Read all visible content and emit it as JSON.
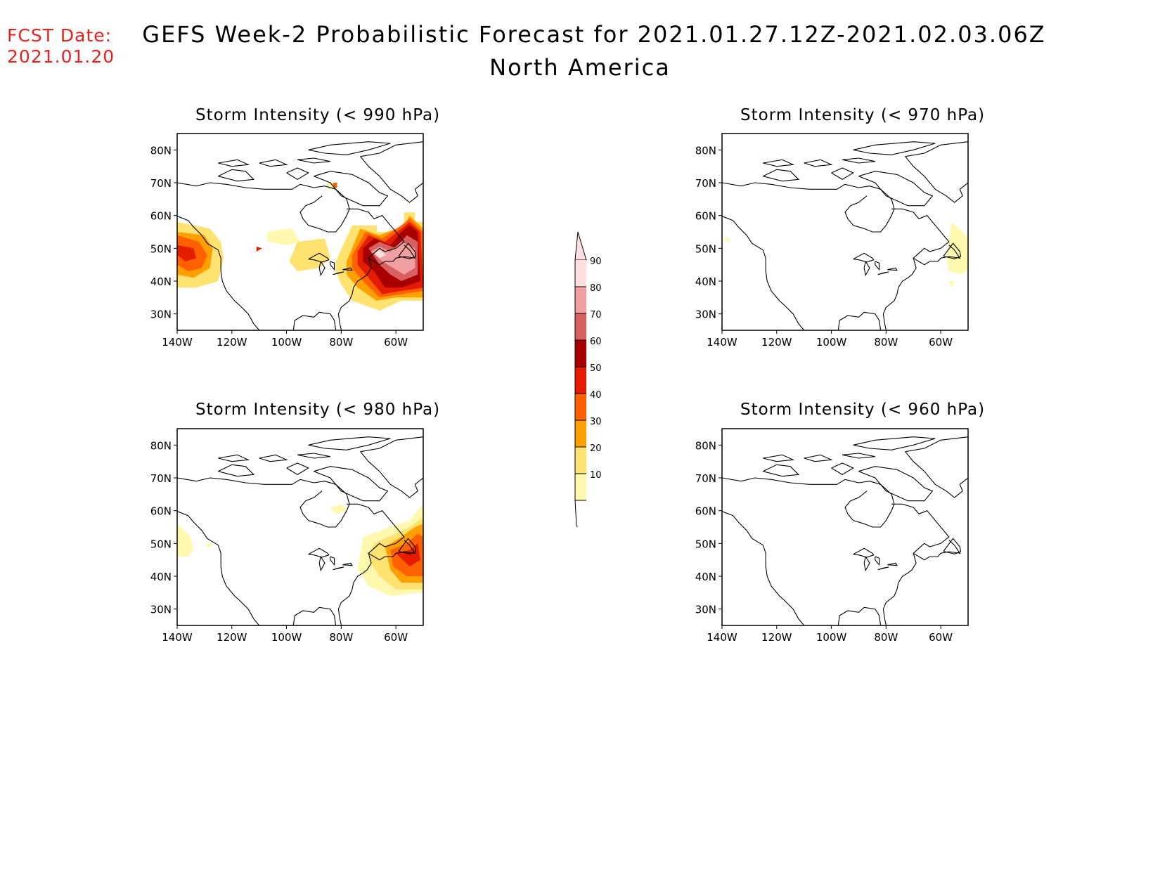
{
  "fcst": {
    "line1": "FCST Date:",
    "line2": "2021.01.20"
  },
  "title": {
    "line1": "GEFS Week-2 Probabilistic Forecast for 2021.01.27.12Z-2021.02.03.06Z",
    "line2": "North America"
  },
  "axes": {
    "lat_labels": [
      "80N",
      "70N",
      "60N",
      "50N",
      "40N",
      "30N"
    ],
    "lon_labels": [
      "140W",
      "120W",
      "100W",
      "80W",
      "60W"
    ]
  },
  "panels": [
    {
      "id": "p990",
      "title": "Storm Intensity (< 990 hPa)"
    },
    {
      "id": "p970",
      "title": "Storm Intensity (< 970 hPa)"
    },
    {
      "id": "p980",
      "title": "Storm Intensity (< 980 hPa)"
    },
    {
      "id": "p960",
      "title": "Storm Intensity (< 960 hPa)"
    }
  ],
  "colorbar": {
    "levels": [
      "10",
      "20",
      "30",
      "40",
      "50",
      "60",
      "70",
      "80",
      "90"
    ],
    "colors": [
      "#fff9b0",
      "#ffe270",
      "#ffa000",
      "#ff6000",
      "#e61c00",
      "#a80000",
      "#d86060",
      "#f0a0a0",
      "#ffe0e0"
    ]
  }
}
